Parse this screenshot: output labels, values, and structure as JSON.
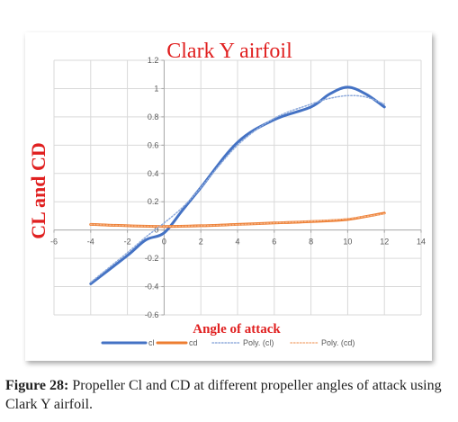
{
  "colors": {
    "cl": "#4472C4",
    "cd": "#ED7D31",
    "poly_cl": "#8EAADB",
    "poly_cd": "#F4B183",
    "title": "#E02020",
    "grid": "#D9D9D9",
    "axis": "#A6A6A6",
    "tick": "#595959"
  },
  "chart_data": {
    "type": "line",
    "title": "Clark Y airfoil",
    "xlabel": "Angle of attack",
    "ylabel": "CL and CD",
    "xlim": [
      -6,
      14
    ],
    "ylim": [
      -0.6,
      1.2
    ],
    "x_ticks": [
      "-6",
      "-4",
      "-2",
      "0",
      "2",
      "4",
      "6",
      "8",
      "10",
      "12",
      "14"
    ],
    "y_ticks": [
      "-0.6",
      "-0.4",
      "-0.2",
      "0",
      "0.2",
      "0.4",
      "0.6",
      "0.8",
      "1",
      "1.2"
    ],
    "grid": true,
    "legend_position": "bottom",
    "series": [
      {
        "name": "cl",
        "style": "solid",
        "x": [
          -4,
          -2,
          -1,
          0,
          1,
          2,
          4,
          6,
          8,
          9,
          10,
          11,
          12
        ],
        "y": [
          -0.38,
          -0.18,
          -0.07,
          -0.02,
          0.14,
          0.3,
          0.62,
          0.78,
          0.87,
          0.96,
          1.01,
          0.96,
          0.87
        ]
      },
      {
        "name": "cd",
        "style": "solid",
        "x": [
          -4,
          -2,
          0,
          2,
          4,
          6,
          8,
          10,
          12
        ],
        "y": [
          0.04,
          0.03,
          0.025,
          0.03,
          0.04,
          0.05,
          0.06,
          0.075,
          0.12
        ]
      },
      {
        "name": "Poly. (cl)",
        "style": "dotted",
        "x": [
          -4,
          -2,
          -1,
          0,
          1,
          2,
          4,
          6,
          8,
          9,
          10,
          11,
          12
        ],
        "y": [
          -0.37,
          -0.16,
          -0.05,
          0.05,
          0.16,
          0.3,
          0.6,
          0.79,
          0.89,
          0.93,
          0.95,
          0.94,
          0.89
        ]
      },
      {
        "name": "Poly. (cd)",
        "style": "dotted",
        "x": [
          -4,
          -2,
          0,
          2,
          4,
          6,
          8,
          10,
          12
        ],
        "y": [
          0.04,
          0.03,
          0.025,
          0.03,
          0.038,
          0.05,
          0.062,
          0.08,
          0.115
        ]
      }
    ]
  },
  "caption": {
    "label": "Figure 28:",
    "text": " Propeller Cl and CD at different propeller angles of attack using Clark Y airfoil."
  }
}
